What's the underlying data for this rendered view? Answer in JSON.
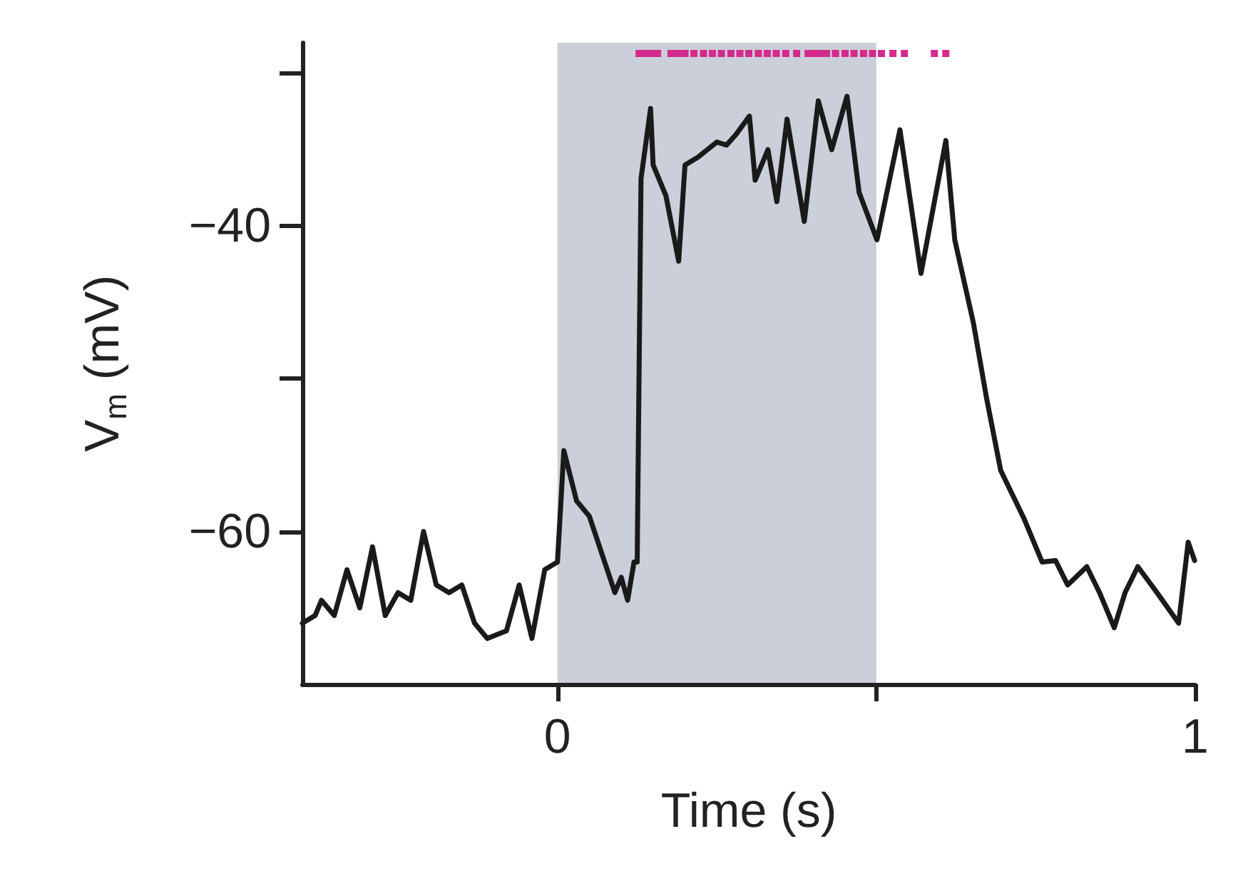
{
  "chart_data": {
    "type": "line",
    "xlabel": "Time (s)",
    "ylabel": "V$_{m}$ (mV)",
    "xlim": [
      -0.4,
      1
    ],
    "ylim": [
      -70,
      -28
    ],
    "xticks": [
      {
        "value": 0,
        "label": "0"
      },
      {
        "value": 0.5,
        "label": null
      },
      {
        "value": 1,
        "label": "1"
      }
    ],
    "yticks": [
      {
        "value": -60,
        "label": "−60"
      },
      {
        "value": -50,
        "label": null
      },
      {
        "value": -40,
        "label": "−40"
      },
      {
        "value": -30,
        "label": null
      }
    ],
    "grid": false,
    "marker": "none",
    "bands": [
      {
        "axis": "x",
        "from": 0,
        "to": 0.5,
        "color": "#cbcfd9"
      }
    ],
    "series": [
      {
        "color": "#1a1a1a",
        "x": [
          -0.4,
          -0.38,
          -0.37,
          -0.35,
          -0.33,
          -0.31,
          -0.29,
          -0.27,
          -0.25,
          -0.23,
          -0.21,
          -0.19,
          -0.17,
          -0.15,
          -0.13,
          -0.11,
          -0.08,
          -0.06,
          -0.04,
          -0.02,
          0.0,
          0.01,
          0.03,
          0.05,
          0.07,
          0.09,
          0.1,
          0.11,
          0.12,
          0.125,
          0.131,
          0.146,
          0.15,
          0.16,
          0.17,
          0.19,
          0.2,
          0.22,
          0.25,
          0.265,
          0.28,
          0.301,
          0.31,
          0.33,
          0.344,
          0.36,
          0.387,
          0.409,
          0.43,
          0.454,
          0.473,
          0.501,
          0.537,
          0.57,
          0.609,
          0.623,
          0.652,
          0.673,
          0.695,
          0.731,
          0.76,
          0.781,
          0.8,
          0.83,
          0.85,
          0.873,
          0.89,
          0.91,
          0.94,
          0.974,
          0.989,
          0.999
        ],
        "values": [
          -66,
          -65.5,
          -64.5,
          -65.5,
          -62.5,
          -65,
          -61,
          -65.5,
          -64,
          -64.5,
          -60,
          -63.5,
          -64,
          -63.5,
          -66,
          -67,
          -66.5,
          -63.5,
          -67,
          -62.5,
          -62,
          -54.7,
          -58,
          -59,
          -61.5,
          -64,
          -63,
          -64.5,
          -62,
          -62,
          -36.9,
          -32.3,
          -36,
          -37,
          -38,
          -42.3,
          -36,
          -35.5,
          -34.5,
          -34.7,
          -34,
          -32.8,
          -37,
          -35,
          -38.4,
          -33,
          -39.7,
          -31.8,
          -35,
          -31.5,
          -37.8,
          -40.9,
          -33.7,
          -43.1,
          -34.4,
          -40.9,
          -46.3,
          -51.3,
          -56,
          -59.1,
          -62,
          -61.9,
          -63.5,
          -62.3,
          -64,
          -66.3,
          -64,
          -62.3,
          -64,
          -66,
          -60.7,
          -61.9
        ]
      },
      {
        "type": "scatter",
        "marker": "square",
        "color": "#d42a8c",
        "x": [
          0.128,
          0.136,
          0.143,
          0.15,
          0.157,
          0.178,
          0.189,
          0.2,
          0.214,
          0.229,
          0.243,
          0.257,
          0.272,
          0.286,
          0.3,
          0.315,
          0.329,
          0.343,
          0.358,
          0.375,
          0.393,
          0.4,
          0.408,
          0.415,
          0.422,
          0.436,
          0.451,
          0.465,
          0.48,
          0.494,
          0.508,
          0.526,
          0.544,
          0.591,
          0.609
        ],
        "values": [
          -28.7,
          -28.7,
          -28.7,
          -28.7,
          -28.7,
          -28.7,
          -28.7,
          -28.7,
          -28.7,
          -28.7,
          -28.7,
          -28.7,
          -28.7,
          -28.7,
          -28.7,
          -28.7,
          -28.7,
          -28.7,
          -28.7,
          -28.7,
          -28.7,
          -28.7,
          -28.7,
          -28.7,
          -28.7,
          -28.7,
          -28.7,
          -28.7,
          -28.7,
          -28.7,
          -28.7,
          -28.7,
          -28.7,
          -28.7,
          -28.7
        ]
      }
    ]
  }
}
